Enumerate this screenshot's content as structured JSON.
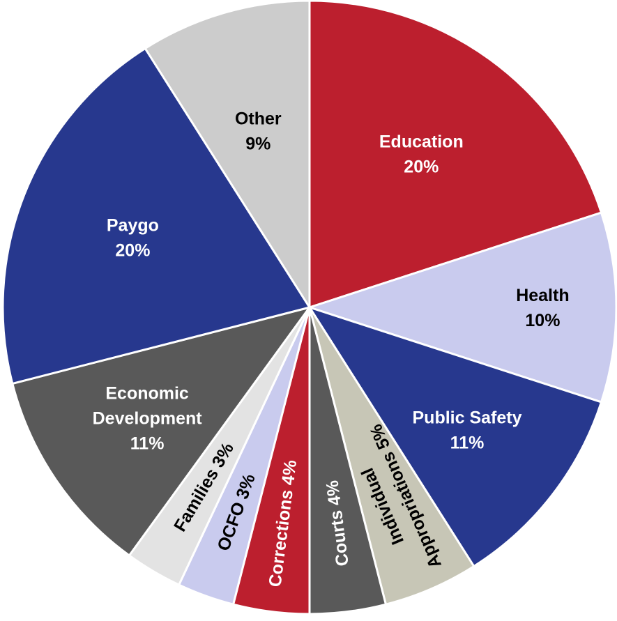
{
  "chart_data": {
    "type": "pie",
    "title": "",
    "start": "top",
    "direction": "clockwise",
    "slices": [
      {
        "label": "Education",
        "value": 20,
        "display": "20%",
        "color": "#BC1F2E",
        "text_color": "#FFFFFF"
      },
      {
        "label": "Health",
        "value": 10,
        "display": "10%",
        "color": "#C9CBEE",
        "text_color": "#000000"
      },
      {
        "label": "Public Safety",
        "value": 11,
        "display": "11%",
        "color": "#27388E",
        "text_color": "#FFFFFF"
      },
      {
        "label": "Individual Appropriations",
        "value": 5,
        "display": "5%",
        "color": "#C7C6B6",
        "text_color": "#000000"
      },
      {
        "label": "Courts",
        "value": 4,
        "display": "4%",
        "color": "#595959",
        "text_color": "#FFFFFF"
      },
      {
        "label": "Corrections",
        "value": 4,
        "display": "4%",
        "color": "#BC1F2E",
        "text_color": "#FFFFFF"
      },
      {
        "label": "OCFO",
        "value": 3,
        "display": "3%",
        "color": "#C9CBEE",
        "text_color": "#000000"
      },
      {
        "label": "Families",
        "value": 3,
        "display": "3%",
        "color": "#E3E3E3",
        "text_color": "#000000"
      },
      {
        "label": "Economic Development",
        "value": 11,
        "display": "11%",
        "color": "#595959",
        "text_color": "#FFFFFF"
      },
      {
        "label": "Paygo",
        "value": 20,
        "display": "20%",
        "color": "#27388E",
        "text_color": "#FFFFFF"
      },
      {
        "label": "Other",
        "value": 9,
        "display": "9%",
        "color": "#CCCCCC",
        "text_color": "#000000"
      }
    ]
  }
}
